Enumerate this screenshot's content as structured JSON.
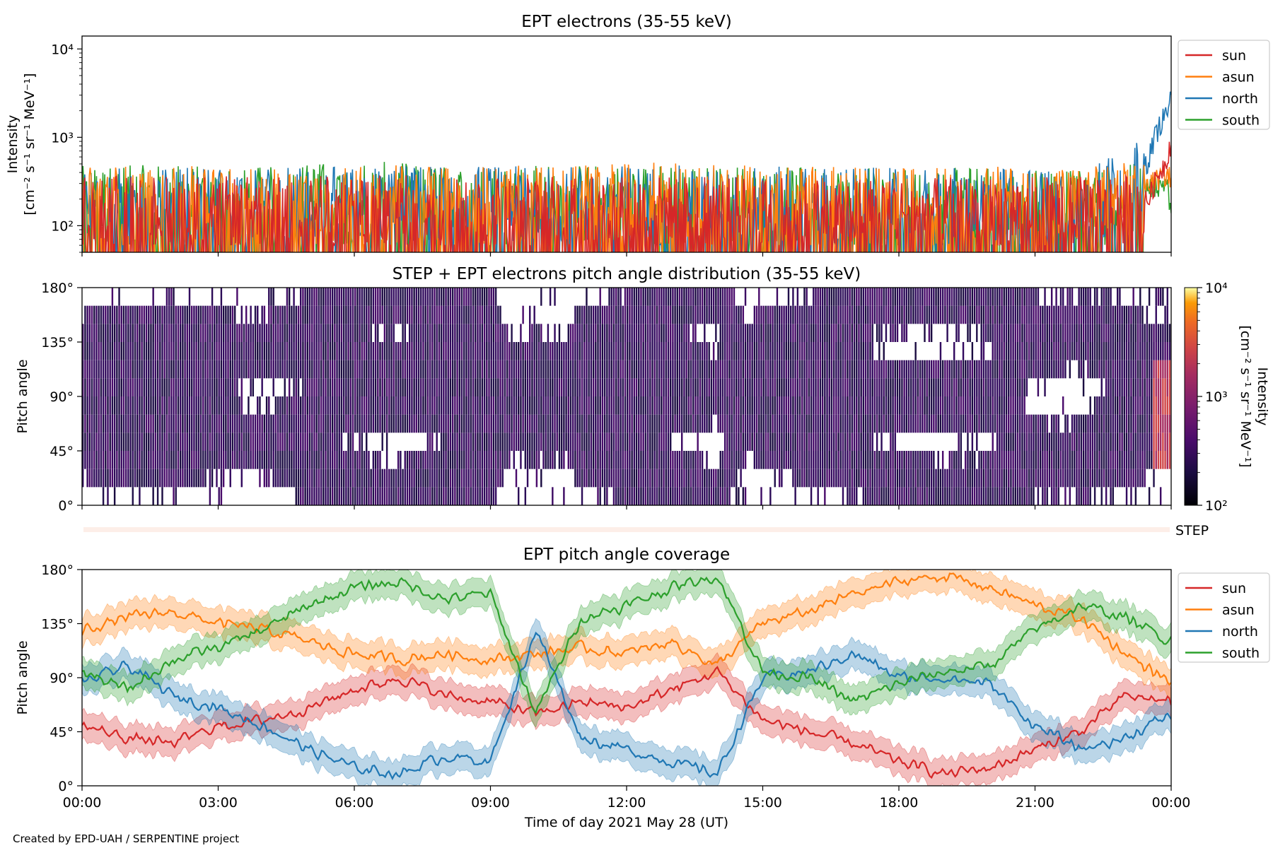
{
  "figure": {
    "credit": "Created by EPD-UAH / SERPENTINE project"
  },
  "colors": {
    "sun": "#d62728",
    "asun": "#ff7f0e",
    "north": "#1f77b4",
    "south": "#2ca02c"
  },
  "chart_data": [
    {
      "type": "line",
      "title": "EPT electrons (35-55 keV)",
      "ylabel": "Intensity",
      "yunit": "[cm⁻² s⁻¹ sr⁻¹ MeV⁻¹]",
      "yscale": "log",
      "ylim": [
        50,
        14000
      ],
      "ytick_values": [
        100,
        1000,
        10000
      ],
      "ytick_labels": [
        "10²",
        "10³",
        "10⁴"
      ],
      "x_range_hours": [
        0,
        24
      ],
      "legend_position": "outside-right-top",
      "series": [
        {
          "name": "sun",
          "color": "#d62728",
          "x_hours": [
            0,
            2,
            4,
            6,
            8,
            10,
            12,
            14,
            16,
            18,
            20,
            22,
            23.5,
            23.9,
            24
          ],
          "typical_peak_intensity": [
            250,
            240,
            230,
            240,
            250,
            230,
            240,
            230,
            220,
            220,
            230,
            230,
            250,
            700,
            1200
          ]
        },
        {
          "name": "asun",
          "color": "#ff7f0e",
          "x_hours": [
            0,
            2,
            4,
            6,
            8,
            10,
            12,
            14,
            16,
            18,
            20,
            22,
            23.5,
            23.9,
            24
          ],
          "typical_peak_intensity": [
            330,
            320,
            310,
            340,
            330,
            320,
            360,
            330,
            320,
            300,
            320,
            310,
            380,
            500,
            450
          ]
        },
        {
          "name": "north",
          "color": "#1f77b4",
          "x_hours": [
            0,
            2,
            4,
            6,
            8,
            10,
            12,
            14,
            16,
            18,
            20,
            22,
            23.5,
            23.9,
            24
          ],
          "typical_peak_intensity": [
            300,
            310,
            300,
            320,
            330,
            310,
            330,
            320,
            310,
            300,
            300,
            300,
            700,
            2500,
            3500
          ]
        },
        {
          "name": "south",
          "color": "#2ca02c",
          "x_hours": [
            0,
            2,
            4,
            6,
            8,
            10,
            12,
            14,
            16,
            18,
            20,
            22,
            23.5,
            23.9,
            24
          ],
          "typical_peak_intensity": [
            320,
            330,
            310,
            380,
            320,
            330,
            340,
            320,
            310,
            300,
            310,
            300,
            350,
            400,
            150
          ]
        }
      ]
    },
    {
      "type": "heatmap",
      "title": "STEP + EPT electrons pitch angle distribution (35-55 keV)",
      "ylabel": "Pitch angle",
      "ylim": [
        0,
        180
      ],
      "ytick_labels": [
        "0°",
        "45°",
        "90°",
        "135°",
        "180°"
      ],
      "x_range_hours": [
        0,
        24
      ],
      "colorbar": {
        "label": "Intensity",
        "unit": "[cm⁻² s⁻¹ sr⁻¹ MeV⁻¹]",
        "scale": "log",
        "range": [
          100,
          10000
        ],
        "tick_labels": [
          "10²",
          "10³",
          "10⁴"
        ],
        "colormap": "inferno"
      },
      "typical_intensity": 180,
      "gaps_description": "white gaps where no pitch angle coverage"
    },
    {
      "type": "strip",
      "label": "STEP"
    },
    {
      "type": "line",
      "title": "EPT pitch angle coverage",
      "ylabel": "Pitch angle",
      "ylim": [
        0,
        180
      ],
      "ytick_labels": [
        "0°",
        "45°",
        "90°",
        "135°",
        "180°"
      ],
      "xlabel": "Time of day 2021 May 28 (UT)",
      "x_tick_labels": [
        "00:00",
        "03:00",
        "06:00",
        "09:00",
        "12:00",
        "15:00",
        "18:00",
        "21:00",
        "00:00"
      ],
      "legend_position": "outside-right-top",
      "band_halfwidth_deg": 12,
      "series": [
        {
          "name": "sun",
          "color": "#d62728",
          "x_hours": [
            0,
            1,
            2,
            3,
            4,
            5,
            6,
            7,
            8,
            9,
            10,
            11,
            12,
            13,
            14,
            15,
            16,
            17,
            18,
            19,
            20,
            21,
            22,
            23,
            24
          ],
          "values": [
            50,
            40,
            35,
            50,
            55,
            65,
            80,
            90,
            75,
            70,
            60,
            70,
            65,
            80,
            95,
            55,
            45,
            35,
            20,
            10,
            15,
            30,
            45,
            75,
            70
          ]
        },
        {
          "name": "asun",
          "color": "#ff7f0e",
          "x_hours": [
            0,
            1,
            2,
            3,
            4,
            5,
            6,
            7,
            8,
            9,
            10,
            11,
            12,
            13,
            14,
            15,
            16,
            17,
            18,
            19,
            20,
            21,
            22,
            23,
            24
          ],
          "values": [
            130,
            140,
            145,
            135,
            130,
            120,
            110,
            105,
            110,
            105,
            110,
            115,
            110,
            120,
            100,
            135,
            145,
            160,
            170,
            175,
            165,
            150,
            140,
            110,
            85
          ]
        },
        {
          "name": "north",
          "color": "#1f77b4",
          "x_hours": [
            0,
            1,
            2,
            3,
            4,
            5,
            6,
            7,
            8,
            9,
            10,
            11,
            12,
            13,
            14,
            15,
            16,
            17,
            18,
            19,
            20,
            21,
            22,
            23,
            24
          ],
          "values": [
            85,
            100,
            75,
            65,
            50,
            30,
            15,
            10,
            25,
            20,
            130,
            40,
            30,
            20,
            10,
            90,
            95,
            110,
            90,
            90,
            85,
            50,
            30,
            40,
            60
          ]
        },
        {
          "name": "south",
          "color": "#2ca02c",
          "x_hours": [
            0,
            1,
            2,
            3,
            4,
            5,
            6,
            7,
            8,
            9,
            10,
            11,
            12,
            13,
            14,
            15,
            16,
            17,
            18,
            19,
            20,
            21,
            22,
            23,
            24
          ],
          "values": [
            95,
            80,
            105,
            115,
            130,
            150,
            165,
            170,
            155,
            160,
            60,
            140,
            150,
            165,
            175,
            95,
            90,
            70,
            85,
            95,
            100,
            130,
            150,
            140,
            120
          ]
        }
      ]
    }
  ]
}
